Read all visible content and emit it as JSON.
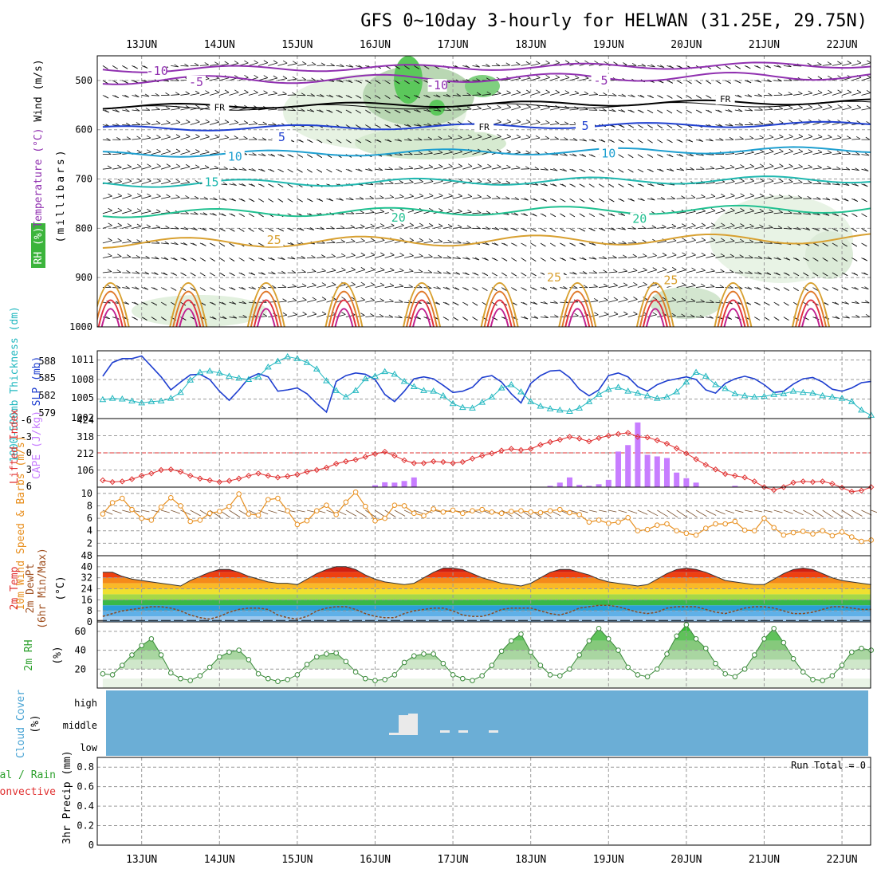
{
  "title": "GFS 0~10day 3-hourly for HELWAN (31.25E, 29.75N)",
  "dates": [
    "13JUN",
    "14JUN",
    "15JUN",
    "16JUN",
    "17JUN",
    "18JUN",
    "19JUN",
    "20JUN",
    "21JUN",
    "22JUN"
  ],
  "colors": {
    "grid": "#9a9a9a",
    "cloud": "#6baed6",
    "rh": "#2ca02c",
    "cape": "#c77dff",
    "li": "#e03030",
    "slp": "#1f3fd0",
    "thick": "#22b8c0",
    "wind": "#e89020",
    "barb": "#7a5230"
  },
  "chart_data": [
    {
      "type": "contour",
      "name": "upper-air",
      "ylabel_parts": [
        "RH (%)",
        "Temperature (°C)",
        "Wind (m/s)"
      ],
      "ylabel_units": "(millibars)",
      "ylim": [
        1000,
        450
      ],
      "yticks": [
        500,
        600,
        700,
        800,
        900,
        1000
      ],
      "isotherm_labels": [
        {
          "label": "-10",
          "x": 0.7,
          "p": 481
        },
        {
          "label": "-5",
          "x": 1.2,
          "p": 503
        },
        {
          "label": "-10",
          "x": 4.3,
          "p": 510
        },
        {
          "label": "-5",
          "x": 6.4,
          "p": 500
        },
        {
          "label": "FR",
          "x": 1.5,
          "p": 553
        },
        {
          "label": "FR",
          "x": 4.9,
          "p": 592
        },
        {
          "label": "FR",
          "x": 8.0,
          "p": 536
        },
        {
          "label": "5",
          "x": 2.3,
          "p": 615
        },
        {
          "label": "5",
          "x": 6.2,
          "p": 592
        },
        {
          "label": "10",
          "x": 1.7,
          "p": 655
        },
        {
          "label": "10",
          "x": 6.5,
          "p": 648
        },
        {
          "label": "15",
          "x": 1.4,
          "p": 706
        },
        {
          "label": "20",
          "x": 3.8,
          "p": 778
        },
        {
          "label": "20",
          "x": 6.9,
          "p": 781
        },
        {
          "label": "25",
          "x": 2.2,
          "p": 824
        },
        {
          "label": "25",
          "x": 5.8,
          "p": 900
        },
        {
          "label": "25",
          "x": 7.3,
          "p": 905
        }
      ]
    },
    {
      "type": "line",
      "name": "slp-thickness",
      "ylabel": "1000-500mb Thickness (dm)",
      "ylabel2": "SLP (mb)",
      "yticks_left": [
        "588",
        "585",
        "582",
        "579"
      ],
      "yticks_right": [
        "1011",
        "1008",
        "1005",
        "1002"
      ],
      "ylim_slp": [
        1002,
        1012.4
      ],
      "ylim_thick": [
        579,
        589.4
      ],
      "series": [
        {
          "name": "SLP",
          "values": [
            1008.5,
            1010.6,
            1011.2,
            1011.2,
            1011.6,
            1010.0,
            1008.4,
            1006.4,
            1007.6,
            1008.7,
            1008.8,
            1008.0,
            1006.2,
            1004.8,
            1006.4,
            1008.2,
            1008.9,
            1008.4,
            1006.2,
            1006.4,
            1006.7,
            1005.8,
            1004.3,
            1003.0,
            1007.7,
            1008.6,
            1009.0,
            1008.8,
            1008.0,
            1005.7,
            1004.6,
            1006.2,
            1008.1,
            1008.4,
            1008.1,
            1007.1,
            1006.0,
            1006.2,
            1006.8,
            1008.3,
            1008.6,
            1007.6,
            1005.8,
            1004.4,
            1007.4,
            1008.6,
            1009.3,
            1009.4,
            1008.3,
            1006.5,
            1005.5,
            1006.4,
            1008.6,
            1009.0,
            1008.4,
            1006.9,
            1006.2,
            1007.2,
            1007.8,
            1008.1,
            1008.4,
            1008.0,
            1006.4,
            1005.9,
            1007.4,
            1008.1,
            1008.5,
            1008.1,
            1007.2,
            1006.0,
            1006.2,
            1007.3,
            1008.1,
            1008.3,
            1007.6,
            1006.5,
            1006.2,
            1006.7,
            1007.5,
            1007.7
          ]
        },
        {
          "name": "Thickness",
          "values": [
            581.9,
            582.1,
            582.0,
            581.7,
            581.4,
            581.6,
            581.7,
            582.1,
            583.0,
            584.9,
            586.1,
            586.3,
            586.0,
            585.5,
            585.2,
            585.0,
            585.4,
            586.9,
            587.8,
            588.5,
            588.2,
            587.6,
            586.6,
            584.8,
            583.3,
            582.3,
            583.3,
            585.1,
            585.5,
            586.2,
            585.8,
            584.7,
            583.9,
            583.3,
            583.2,
            582.5,
            581.3,
            580.7,
            580.6,
            581.5,
            582.3,
            583.7,
            584.2,
            583.1,
            581.6,
            580.9,
            580.5,
            580.3,
            580.1,
            580.6,
            581.6,
            582.7,
            583.5,
            583.8,
            583.2,
            582.9,
            582.5,
            582.1,
            582.3,
            583.1,
            584.6,
            586.1,
            585.5,
            584.2,
            583.6,
            582.8,
            582.5,
            582.3,
            582.4,
            582.7,
            582.8,
            583.2,
            583.0,
            582.9,
            582.5,
            582.3,
            582.1,
            581.6,
            580.3,
            579.5
          ]
        }
      ]
    },
    {
      "type": "bar",
      "name": "cape-li",
      "ylabel": "Lifted Index",
      "ylabel2": "CAPE (J/kg)",
      "yticks_left": [
        "-6",
        "-3",
        "0",
        "3",
        "6"
      ],
      "yticks_right": [
        "424",
        "318",
        "212",
        "106"
      ],
      "ylim_cape": [
        0,
        424
      ],
      "ylim_li": [
        6,
        -6
      ],
      "cape": [
        0,
        0,
        0,
        0,
        0,
        0,
        0,
        0,
        0,
        0,
        0,
        0,
        0,
        0,
        0,
        0,
        0,
        0,
        0,
        0,
        0,
        0,
        0,
        0,
        0,
        0,
        0,
        0,
        12,
        30,
        28,
        38,
        60,
        0,
        0,
        0,
        0,
        0,
        0,
        0,
        0,
        0,
        0,
        0,
        0,
        0,
        8,
        28,
        60,
        14,
        8,
        18,
        45,
        220,
        260,
        400,
        200,
        190,
        180,
        90,
        55,
        28,
        0,
        0,
        0,
        8,
        0,
        0,
        0,
        0,
        0,
        0,
        0,
        0,
        0,
        0,
        0,
        0,
        0,
        0
      ],
      "lifted_index": [
        4.8,
        5.1,
        5.0,
        4.6,
        4.0,
        3.6,
        3.0,
        2.9,
        3.3,
        4.0,
        4.5,
        4.8,
        5.1,
        4.9,
        4.5,
        4.0,
        3.6,
        4.0,
        4.3,
        4.1,
        3.8,
        3.3,
        3.0,
        2.6,
        1.9,
        1.5,
        1.2,
        0.7,
        0.2,
        -0.2,
        0.5,
        1.3,
        1.8,
        1.8,
        1.5,
        1.6,
        1.8,
        1.6,
        1.0,
        0.5,
        0.1,
        -0.4,
        -0.7,
        -0.5,
        -0.7,
        -1.4,
        -1.9,
        -2.3,
        -2.8,
        -2.5,
        -2.0,
        -2.6,
        -3.0,
        -3.3,
        -3.5,
        -2.8,
        -2.7,
        -2.2,
        -1.6,
        -0.8,
        0.1,
        1.1,
        2.1,
        2.9,
        3.7,
        4.0,
        4.3,
        5.0,
        6.0,
        6.5,
        6.0,
        5.2,
        5.0,
        5.1,
        5.0,
        5.4,
        6.1,
        6.8,
        6.6,
        6.0
      ]
    },
    {
      "type": "line",
      "name": "wind10m",
      "ylabel": "10m Wind Speed & Barbs (m/s)",
      "yticks": [
        "10",
        "8",
        "6",
        "4",
        "2"
      ],
      "ylim": [
        0,
        11
      ],
      "values": [
        6.7,
        8.5,
        9.2,
        7.4,
        6.0,
        5.7,
        7.8,
        9.3,
        8.0,
        5.5,
        5.7,
        6.8,
        7.1,
        7.9,
        9.9,
        6.7,
        6.5,
        9.0,
        9.2,
        7.2,
        5.0,
        5.6,
        7.2,
        8.1,
        6.6,
        8.6,
        10.2,
        7.9,
        5.6,
        6.0,
        8.1,
        8.0,
        6.8,
        6.4,
        7.5,
        7.0,
        7.3,
        6.8,
        7.2,
        7.4,
        7.0,
        6.8,
        7.1,
        7.2,
        7.0,
        6.9,
        7.2,
        7.4,
        6.9,
        6.6,
        5.4,
        5.7,
        5.2,
        5.4,
        6.1,
        4.0,
        4.2,
        4.9,
        5.1,
        4.0,
        3.6,
        3.3,
        4.4,
        5.1,
        5.1,
        5.5,
        4.1,
        4.0,
        6.0,
        4.5,
        3.3,
        3.7,
        3.9,
        3.5,
        4.0,
        3.2,
        3.8,
        3.0,
        2.3,
        2.5
      ]
    },
    {
      "type": "area",
      "name": "temp2m",
      "ylabel": "2m Temp 2m DewPt (6hr Min/Max) (°C)",
      "yticks": [
        "48",
        "40",
        "32",
        "24",
        "16",
        "8",
        "0"
      ],
      "ylim": [
        0,
        48
      ],
      "temperature": [
        36,
        36,
        33,
        31,
        30,
        29,
        28,
        27,
        26,
        30,
        33,
        36,
        38,
        38,
        36,
        33,
        31,
        29,
        28,
        28,
        27,
        31,
        35,
        38,
        40,
        40,
        38,
        34,
        31,
        29,
        28,
        27,
        28,
        32,
        36,
        39,
        39,
        38,
        35,
        32,
        30,
        28,
        27,
        26,
        28,
        32,
        36,
        38,
        38,
        36,
        34,
        31,
        29,
        28,
        27,
        26,
        27,
        31,
        35,
        38,
        39,
        38,
        36,
        33,
        30,
        29,
        28,
        27,
        27,
        31,
        35,
        38,
        39,
        38,
        35,
        32,
        30,
        29,
        28,
        27
      ],
      "dewpoint": [
        4,
        6,
        8,
        9,
        10,
        11,
        11,
        10,
        8,
        5,
        3,
        2,
        4,
        7,
        9,
        10,
        10,
        9,
        5,
        3,
        2,
        4,
        8,
        10,
        11,
        11,
        9,
        6,
        4,
        3,
        3,
        6,
        8,
        9,
        10,
        10,
        8,
        5,
        4,
        4,
        6,
        9,
        10,
        10,
        10,
        8,
        6,
        5,
        7,
        10,
        11,
        12,
        12,
        11,
        9,
        7,
        6,
        7,
        10,
        11,
        11,
        11,
        9,
        7,
        6,
        8,
        10,
        11,
        11,
        10,
        8,
        6,
        6,
        7,
        9,
        11,
        11,
        10,
        9,
        9
      ]
    },
    {
      "type": "area",
      "name": "rh2m",
      "ylabel": "2m RH (%)",
      "yticks": [
        "60",
        "40",
        "20"
      ],
      "ylim": [
        0,
        70
      ],
      "values": [
        15,
        14,
        24,
        35,
        45,
        52,
        35,
        16,
        10,
        8,
        13,
        22,
        33,
        38,
        40,
        30,
        15,
        10,
        7,
        9,
        14,
        25,
        33,
        36,
        37,
        28,
        17,
        10,
        8,
        9,
        14,
        27,
        34,
        36,
        36,
        26,
        14,
        10,
        8,
        13,
        24,
        39,
        50,
        57,
        38,
        24,
        14,
        13,
        20,
        35,
        50,
        63,
        52,
        40,
        22,
        14,
        12,
        20,
        36,
        55,
        67,
        52,
        42,
        26,
        15,
        12,
        20,
        35,
        52,
        63,
        48,
        31,
        17,
        9,
        8,
        13,
        24,
        38,
        42,
        40
      ]
    },
    {
      "type": "bar",
      "name": "cloud",
      "ylabel": "Cloud Cover (%)",
      "yticks": [
        "high",
        "middle",
        "low"
      ],
      "middle_cloud": [
        0,
        0,
        0,
        0,
        0,
        0,
        0,
        0,
        0,
        0,
        0,
        0,
        0,
        0,
        0,
        0,
        0,
        0,
        0,
        0,
        0,
        0,
        0,
        0,
        0,
        0,
        0,
        0,
        0,
        0,
        0,
        0,
        0,
        0,
        0,
        0,
        0,
        0,
        0,
        0,
        0,
        0,
        0,
        0,
        0,
        0,
        0,
        0,
        0,
        0,
        0,
        0,
        0,
        0,
        0,
        0,
        0,
        0,
        0,
        0,
        0,
        0,
        0,
        0,
        0,
        0,
        0,
        0,
        0,
        0,
        0,
        0,
        0,
        0,
        0,
        0,
        0,
        0,
        0,
        0
      ]
    },
    {
      "type": "bar",
      "name": "precip",
      "ylabel": "3hr Precip (mm)",
      "legend": [
        "Total / Rain",
        "Convective"
      ],
      "yticks": [
        "0.8",
        "0.6",
        "0.4",
        "0.2",
        "0"
      ],
      "ylim": [
        0,
        0.9
      ],
      "annotation": "Run Total = 0",
      "values": []
    }
  ]
}
